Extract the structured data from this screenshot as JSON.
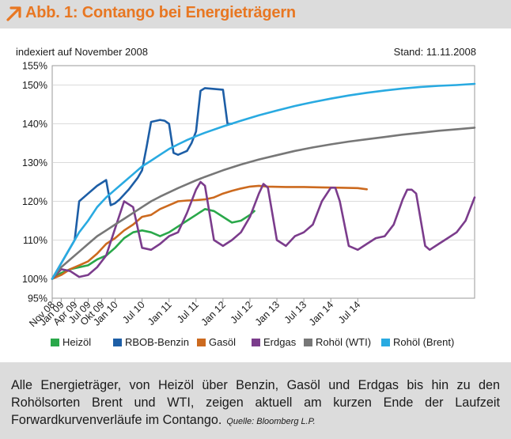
{
  "header": {
    "title": "Abb. 1: Contango bei Energieträgern"
  },
  "chart_data": {
    "type": "line",
    "title": "Abb. 1: Contango bei Energieträgern",
    "ylabel": "indexiert auf November 2008",
    "note": "Stand: 11.11.2008",
    "ylim": [
      95,
      155
    ],
    "yticks": [
      "95%",
      "100%",
      "110%",
      "120%",
      "130%",
      "140%",
      "150%",
      "155%"
    ],
    "xticks": [
      "Nov 08",
      "Jan 09",
      "Apr 09",
      "Jul 09",
      "Okt 09",
      "Jan 10",
      "Jul 10",
      "Jan 11",
      "Jul 11",
      "Jan 12",
      "Jul 12",
      "Jan 13",
      "Jul 13",
      "Jan 14",
      "Jul 14"
    ],
    "x_unit": "months since Nov 08",
    "legend_position": "bottom",
    "series": [
      {
        "name": "Heizöl",
        "color": "#2aa84a",
        "points": [
          [
            0,
            100
          ],
          [
            2,
            101.5
          ],
          [
            4,
            102.5
          ],
          [
            6,
            103
          ],
          [
            8,
            103.5
          ],
          [
            10,
            105
          ],
          [
            12,
            106
          ],
          [
            14,
            108
          ],
          [
            16,
            110.5
          ],
          [
            18,
            112
          ],
          [
            20,
            112.5
          ],
          [
            22,
            112
          ],
          [
            24,
            111
          ],
          [
            26,
            112
          ],
          [
            28,
            113.5
          ],
          [
            30,
            115
          ],
          [
            32,
            116.5
          ],
          [
            34,
            118
          ],
          [
            36,
            117.5
          ],
          [
            38,
            116
          ],
          [
            40,
            114.5
          ],
          [
            42,
            115
          ],
          [
            44,
            116.5
          ],
          [
            45,
            117.5
          ]
        ]
      },
      {
        "name": "RBOB-Benzin",
        "color": "#1d5ea6",
        "points": [
          [
            0,
            100
          ],
          [
            1,
            102
          ],
          [
            3,
            106
          ],
          [
            5,
            110
          ],
          [
            6,
            120
          ],
          [
            8,
            122
          ],
          [
            10,
            124
          ],
          [
            12,
            125.5
          ],
          [
            13,
            119
          ],
          [
            14,
            119.5
          ],
          [
            15,
            120.5
          ],
          [
            17,
            123
          ],
          [
            19,
            126
          ],
          [
            20,
            128
          ],
          [
            21,
            134
          ],
          [
            22,
            140.5
          ],
          [
            24,
            141
          ],
          [
            25,
            140.8
          ],
          [
            26,
            140
          ],
          [
            27,
            132.5
          ],
          [
            28,
            132
          ],
          [
            30,
            133
          ],
          [
            31,
            135
          ],
          [
            32,
            138
          ],
          [
            33,
            148.5
          ],
          [
            34,
            149.2
          ],
          [
            36,
            149
          ],
          [
            38,
            148.8
          ],
          [
            39,
            140
          ],
          [
            40,
            140
          ]
        ]
      },
      {
        "name": "Gasöl",
        "color": "#cc6a1f",
        "points": [
          [
            0,
            100
          ],
          [
            2,
            101
          ],
          [
            4,
            102.5
          ],
          [
            6,
            103.5
          ],
          [
            8,
            104.5
          ],
          [
            10,
            106.5
          ],
          [
            12,
            109
          ],
          [
            14,
            110.5
          ],
          [
            16,
            112.5
          ],
          [
            18,
            114
          ],
          [
            20,
            116
          ],
          [
            22,
            116.5
          ],
          [
            24,
            118
          ],
          [
            26,
            119
          ],
          [
            28,
            120
          ],
          [
            30,
            120.2
          ],
          [
            32,
            120.3
          ],
          [
            34,
            120.5
          ],
          [
            36,
            121
          ],
          [
            38,
            122
          ],
          [
            40,
            122.7
          ],
          [
            42,
            123.3
          ],
          [
            44,
            123.8
          ],
          [
            46,
            124
          ],
          [
            48,
            123.8
          ],
          [
            52,
            123.7
          ],
          [
            56,
            123.7
          ],
          [
            60,
            123.6
          ],
          [
            64,
            123.5
          ],
          [
            68,
            123.4
          ],
          [
            70,
            123.1
          ]
        ]
      },
      {
        "name": "Erdgas",
        "color": "#7b3c8c",
        "points": [
          [
            0,
            100
          ],
          [
            2,
            102.5
          ],
          [
            4,
            102
          ],
          [
            6,
            100.5
          ],
          [
            8,
            101
          ],
          [
            10,
            103
          ],
          [
            12,
            106
          ],
          [
            14,
            113
          ],
          [
            16,
            120
          ],
          [
            18,
            118.5
          ],
          [
            20,
            108
          ],
          [
            22,
            107.5
          ],
          [
            24,
            109
          ],
          [
            26,
            111
          ],
          [
            28,
            112
          ],
          [
            30,
            117
          ],
          [
            32,
            123
          ],
          [
            33,
            125
          ],
          [
            34,
            124
          ],
          [
            35,
            117
          ],
          [
            36,
            110
          ],
          [
            38,
            108.5
          ],
          [
            40,
            110
          ],
          [
            42,
            112
          ],
          [
            44,
            116
          ],
          [
            46,
            122
          ],
          [
            47,
            124.5
          ],
          [
            48,
            123.5
          ],
          [
            50,
            110
          ],
          [
            52,
            108.5
          ],
          [
            54,
            111
          ],
          [
            56,
            112
          ],
          [
            58,
            114
          ],
          [
            60,
            120
          ],
          [
            62,
            123.5
          ],
          [
            63,
            123.5
          ],
          [
            64,
            120
          ],
          [
            66,
            108.5
          ],
          [
            68,
            107.5
          ],
          [
            70,
            109
          ],
          [
            72,
            110.5
          ],
          [
            74,
            111
          ],
          [
            76,
            114
          ],
          [
            78,
            120.5
          ],
          [
            79,
            123
          ],
          [
            80,
            123
          ],
          [
            81,
            122
          ],
          [
            83,
            108.5
          ],
          [
            84,
            107.5
          ],
          [
            86,
            109
          ],
          [
            88,
            110.5
          ],
          [
            90,
            112
          ],
          [
            92,
            115
          ],
          [
            94,
            121
          ]
        ]
      },
      {
        "name": "Rohöl (WTI)",
        "color": "#777777",
        "points": [
          [
            0,
            100
          ],
          [
            2,
            103
          ],
          [
            4,
            105
          ],
          [
            6,
            107
          ],
          [
            8,
            109
          ],
          [
            10,
            111
          ],
          [
            12,
            112.5
          ],
          [
            14,
            114
          ],
          [
            16,
            115.5
          ],
          [
            18,
            117
          ],
          [
            20,
            118.5
          ],
          [
            22,
            120
          ],
          [
            24,
            121.2
          ],
          [
            26,
            122.3
          ],
          [
            28,
            123.4
          ],
          [
            30,
            124.4
          ],
          [
            32,
            125.4
          ],
          [
            34,
            126.3
          ],
          [
            38,
            128
          ],
          [
            42,
            129.5
          ],
          [
            46,
            130.8
          ],
          [
            50,
            131.9
          ],
          [
            54,
            133
          ],
          [
            58,
            133.9
          ],
          [
            62,
            134.7
          ],
          [
            66,
            135.4
          ],
          [
            70,
            136
          ],
          [
            74,
            136.6
          ],
          [
            78,
            137.2
          ],
          [
            82,
            137.7
          ],
          [
            86,
            138.2
          ],
          [
            90,
            138.6
          ],
          [
            94,
            139
          ]
        ]
      },
      {
        "name": "Rohöl (Brent)",
        "color": "#29aae1",
        "points": [
          [
            0,
            100
          ],
          [
            2,
            104
          ],
          [
            4,
            108
          ],
          [
            6,
            112
          ],
          [
            8,
            115
          ],
          [
            10,
            118.5
          ],
          [
            12,
            121
          ],
          [
            14,
            123
          ],
          [
            16,
            125
          ],
          [
            18,
            127
          ],
          [
            20,
            129
          ],
          [
            22,
            130.5
          ],
          [
            24,
            132
          ],
          [
            26,
            133.5
          ],
          [
            28,
            134.7
          ],
          [
            30,
            135.8
          ],
          [
            32,
            136.8
          ],
          [
            34,
            137.7
          ],
          [
            38,
            139.3
          ],
          [
            42,
            140.8
          ],
          [
            46,
            142.2
          ],
          [
            50,
            143.4
          ],
          [
            54,
            144.6
          ],
          [
            58,
            145.6
          ],
          [
            62,
            146.5
          ],
          [
            66,
            147.3
          ],
          [
            70,
            148
          ],
          [
            74,
            148.6
          ],
          [
            78,
            149.1
          ],
          [
            82,
            149.5
          ],
          [
            86,
            149.8
          ],
          [
            90,
            150
          ],
          [
            94,
            150.3
          ]
        ]
      }
    ]
  },
  "caption": {
    "text": "Alle Energieträger, von Heizöl über Benzin, Gasöl und Erdgas bis hin zu den Rohölsorten Brent und WTI, zeigen aktuell am kurzen Ende der Laufzeit Forwardkurvenverläufe im Contango.",
    "source": "Quelle: Bloomberg L.P."
  }
}
